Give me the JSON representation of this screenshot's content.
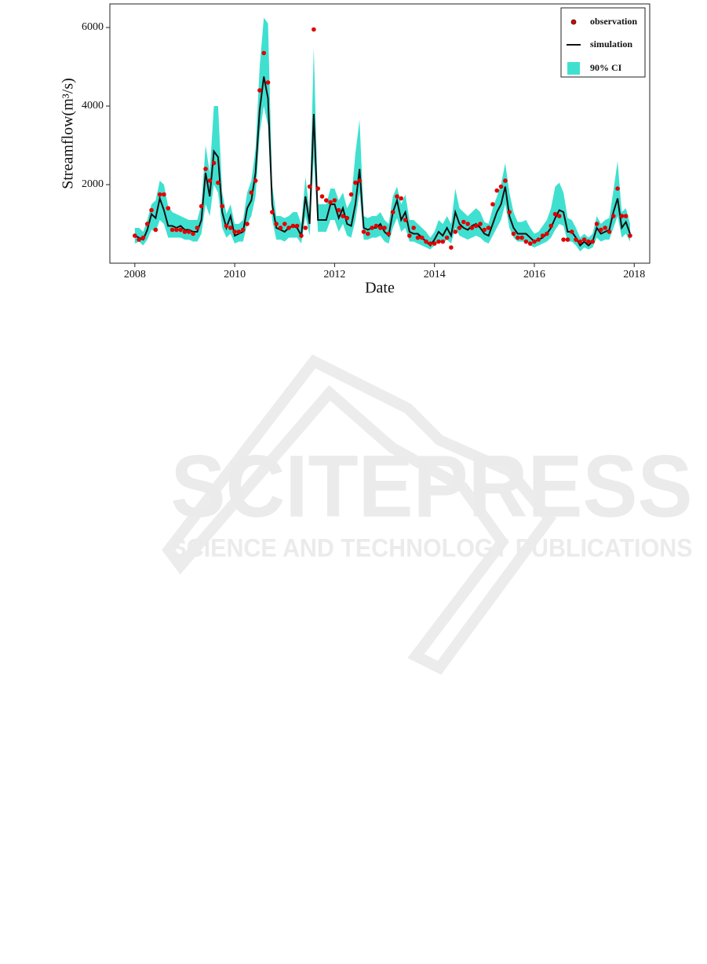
{
  "chart_data": {
    "type": "line",
    "x_label": "Date",
    "y_label": "Streamflow(m³/s)",
    "xlim": [
      2007.5,
      2018.31
    ],
    "xticks": [
      2008,
      2010,
      2012,
      2014,
      2016,
      2018
    ],
    "ylim": [
      0,
      6600
    ],
    "yticks": [
      2000,
      4000,
      6000
    ],
    "legend": "top-right",
    "x": [
      2008,
      2008.083,
      2008.167,
      2008.25,
      2008.333,
      2008.417,
      2008.5,
      2008.583,
      2008.667,
      2008.75,
      2008.833,
      2008.917,
      2009,
      2009.083,
      2009.167,
      2009.25,
      2009.333,
      2009.417,
      2009.5,
      2009.583,
      2009.667,
      2009.75,
      2009.833,
      2009.917,
      2010,
      2010.083,
      2010.167,
      2010.25,
      2010.333,
      2010.417,
      2010.5,
      2010.583,
      2010.667,
      2010.75,
      2010.833,
      2010.917,
      2011,
      2011.083,
      2011.167,
      2011.25,
      2011.333,
      2011.417,
      2011.5,
      2011.583,
      2011.667,
      2011.75,
      2011.833,
      2011.917,
      2012,
      2012.083,
      2012.167,
      2012.25,
      2012.333,
      2012.417,
      2012.5,
      2012.583,
      2012.667,
      2012.75,
      2012.833,
      2012.917,
      2013,
      2013.083,
      2013.167,
      2013.25,
      2013.333,
      2013.417,
      2013.5,
      2013.583,
      2013.667,
      2013.75,
      2013.833,
      2013.917,
      2014,
      2014.083,
      2014.167,
      2014.25,
      2014.333,
      2014.417,
      2014.5,
      2014.583,
      2014.667,
      2014.75,
      2014.833,
      2014.917,
      2015,
      2015.083,
      2015.167,
      2015.25,
      2015.333,
      2015.417,
      2015.5,
      2015.583,
      2015.667,
      2015.75,
      2015.833,
      2015.917,
      2016,
      2016.083,
      2016.167,
      2016.25,
      2016.333,
      2016.417,
      2016.5,
      2016.583,
      2016.667,
      2016.75,
      2016.833,
      2016.917,
      2017,
      2017.083,
      2017.167,
      2017.25,
      2017.333,
      2017.417,
      2017.5,
      2017.583,
      2017.667,
      2017.75,
      2017.833,
      2017.917
    ],
    "band": {
      "name": "90% CI",
      "color": "#40e0d0",
      "lower": [
        500,
        550,
        450,
        600,
        850,
        800,
        1100,
        1000,
        650,
        650,
        650,
        650,
        600,
        600,
        550,
        550,
        750,
        1500,
        1200,
        2000,
        1800,
        900,
        650,
        750,
        500,
        550,
        550,
        1000,
        1200,
        1700,
        3300,
        4000,
        3500,
        1100,
        600,
        600,
        550,
        650,
        650,
        650,
        500,
        1200,
        700,
        2700,
        800,
        800,
        800,
        1100,
        1100,
        800,
        1000,
        700,
        650,
        1100,
        1800,
        600,
        600,
        650,
        650,
        700,
        550,
        500,
        900,
        1150,
        800,
        900,
        550,
        550,
        500,
        450,
        400,
        350,
        450,
        550,
        500,
        600,
        500,
        900,
        700,
        650,
        600,
        650,
        700,
        650,
        550,
        500,
        700,
        900,
        1100,
        1500,
        900,
        650,
        550,
        550,
        550,
        450,
        400,
        450,
        500,
        550,
        650,
        850,
        1000,
        950,
        550,
        550,
        450,
        300,
        400,
        350,
        400,
        650,
        550,
        600,
        600,
        900,
        1200,
        650,
        750,
        550
      ],
      "upper": [
        900,
        900,
        800,
        1100,
        1500,
        1600,
        2100,
        2000,
        1450,
        1300,
        1250,
        1200,
        1150,
        1100,
        1100,
        1100,
        1500,
        3000,
        2300,
        4000,
        4000,
        1800,
        1250,
        1500,
        1000,
        1000,
        1100,
        1800,
        2100,
        2900,
        5000,
        6250,
        6100,
        2000,
        1200,
        1200,
        1150,
        1200,
        1300,
        1300,
        1000,
        2200,
        1300,
        5500,
        1500,
        1500,
        1500,
        1900,
        1900,
        1600,
        1800,
        1400,
        1600,
        2800,
        3650,
        1200,
        1150,
        1200,
        1200,
        1300,
        1100,
        1000,
        1700,
        1950,
        1500,
        1750,
        1100,
        1100,
        1000,
        900,
        800,
        650,
        800,
        1100,
        1000,
        1200,
        1000,
        1900,
        1400,
        1300,
        1200,
        1300,
        1400,
        1300,
        1050,
        1000,
        1400,
        1700,
        2000,
        2550,
        1800,
        1300,
        1050,
        1050,
        1100,
        900,
        750,
        800,
        950,
        1100,
        1400,
        1950,
        2050,
        1800,
        1150,
        1100,
        900,
        650,
        750,
        650,
        750,
        1200,
        1000,
        1100,
        1150,
        1850,
        2600,
        1300,
        1400,
        1000
      ]
    },
    "series": [
      {
        "name": "simulation",
        "color": "#111111",
        "values": [
          700,
          650,
          600,
          850,
          1250,
          1150,
          1650,
          1350,
          950,
          950,
          900,
          950,
          850,
          850,
          800,
          800,
          1100,
          2300,
          1700,
          2850,
          2700,
          1300,
          900,
          1200,
          700,
          750,
          800,
          1400,
          1600,
          2300,
          3900,
          4750,
          4200,
          1500,
          900,
          850,
          800,
          900,
          950,
          900,
          700,
          1700,
          1000,
          3800,
          1100,
          1100,
          1100,
          1500,
          1500,
          1150,
          1400,
          1000,
          950,
          1500,
          2400,
          900,
          850,
          900,
          900,
          1000,
          800,
          700,
          1300,
          1600,
          1100,
          1300,
          800,
          750,
          750,
          650,
          550,
          450,
          600,
          800,
          700,
          900,
          700,
          1300,
          1000,
          900,
          850,
          950,
          1000,
          900,
          750,
          700,
          1000,
          1300,
          1500,
          1950,
          1200,
          900,
          750,
          750,
          750,
          650,
          550,
          600,
          650,
          750,
          900,
          1150,
          1350,
          1300,
          800,
          800,
          650,
          450,
          550,
          450,
          550,
          900,
          750,
          800,
          850,
          1300,
          1650,
          900,
          1050,
          750
        ]
      },
      {
        "name": "observation",
        "color": "#e00000",
        "values": [
          700,
          600,
          650,
          1000,
          1350,
          850,
          1750,
          1750,
          1400,
          850,
          850,
          850,
          800,
          800,
          750,
          900,
          1450,
          2400,
          2100,
          2550,
          2050,
          1450,
          950,
          900,
          800,
          800,
          850,
          1000,
          1800,
          2100,
          4400,
          5350,
          4600,
          1300,
          1000,
          900,
          1000,
          900,
          950,
          950,
          700,
          900,
          1950,
          5950,
          1900,
          1700,
          1600,
          1550,
          1600,
          1350,
          1200,
          1150,
          1750,
          2050,
          2100,
          800,
          750,
          900,
          950,
          900,
          900,
          750,
          1300,
          1700,
          1650,
          1100,
          700,
          900,
          650,
          650,
          550,
          500,
          500,
          550,
          550,
          650,
          400,
          800,
          900,
          1050,
          1000,
          900,
          950,
          1000,
          850,
          900,
          1500,
          1850,
          1950,
          2100,
          1300,
          750,
          650,
          650,
          550,
          500,
          550,
          600,
          700,
          750,
          950,
          1250,
          1200,
          600,
          600,
          800,
          600,
          550,
          600,
          550,
          550,
          1000,
          850,
          900,
          800,
          1200,
          1900,
          1200,
          1200,
          700
        ]
      }
    ]
  },
  "watermark": {
    "title": "SCITEPRESS",
    "subtitle": "SCIENCE AND TECHNOLOGY PUBLICATIONS"
  }
}
